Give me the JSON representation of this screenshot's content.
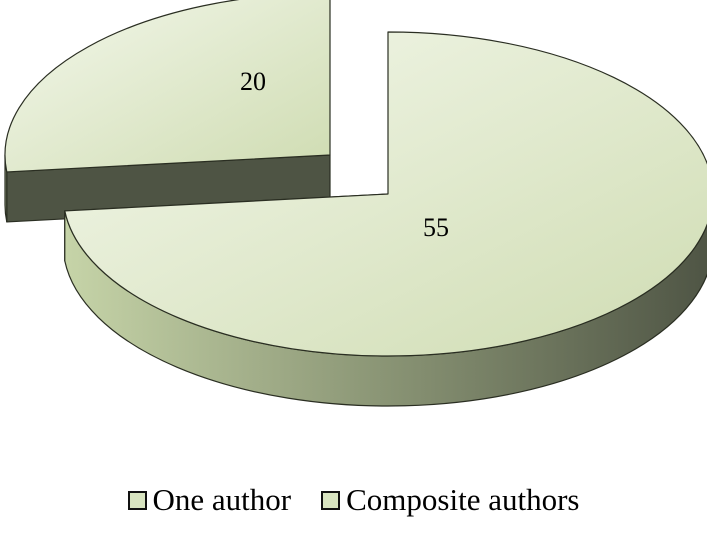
{
  "chart_data": {
    "type": "pie",
    "style": "3d-exploded",
    "categories": [
      "One author",
      "Composite authors"
    ],
    "values": [
      55,
      20
    ],
    "data_labels": [
      "55",
      "20"
    ],
    "legend_position": "bottom",
    "colors": {
      "top_light": "#f4f8ec",
      "top_dark": "#cfdcb2",
      "side_light": "#c6d4a8",
      "side_mid": "#8f9a79",
      "side_dark": "#4e5444",
      "edge": "#2a2e22",
      "swatch_fill": "#d8e4c0"
    }
  },
  "legend": {
    "items": [
      "One author",
      "Composite authors"
    ]
  }
}
